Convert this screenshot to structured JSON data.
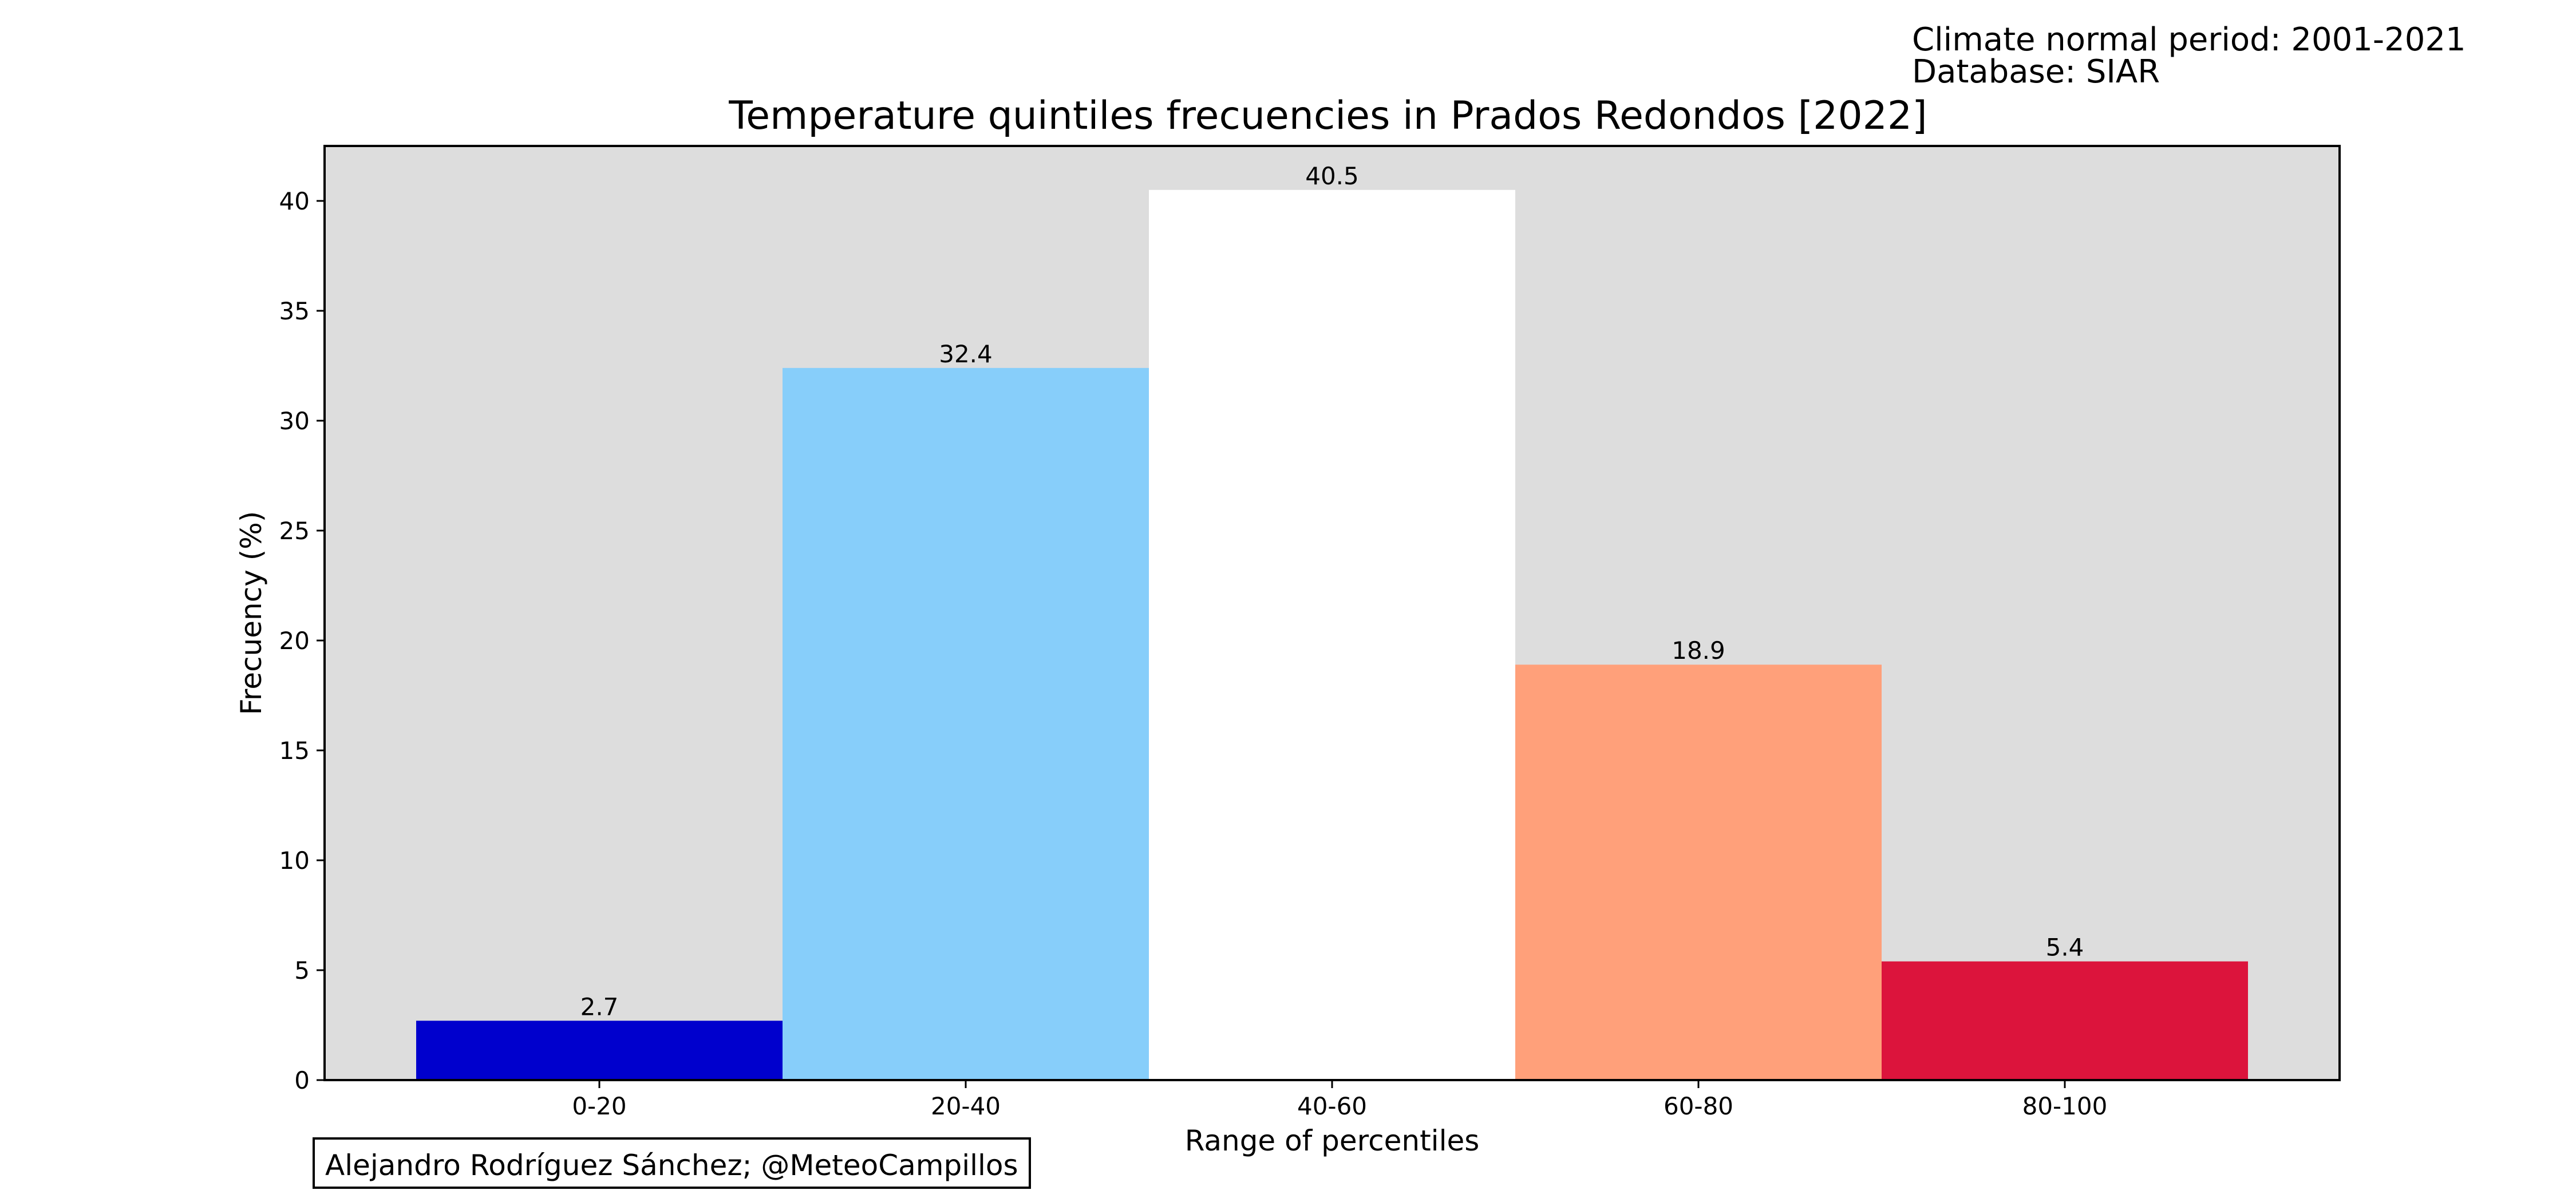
{
  "meta": {
    "period": "Climate normal period: 2001-2021",
    "database": "Database: SIAR"
  },
  "credit": "Alejandro Rodríguez Sánchez; @MeteoCampillos",
  "chart_data": {
    "type": "bar",
    "title": "Temperature quintiles frecuencies in Prados Redondos [2022]",
    "xlabel": "Range of percentiles",
    "ylabel": "Frecuency (%)",
    "categories": [
      "0-20",
      "20-40",
      "40-60",
      "60-80",
      "80-100"
    ],
    "values": [
      2.7,
      32.4,
      40.5,
      18.9,
      5.4
    ],
    "value_labels": [
      "2.7",
      "32.4",
      "40.5",
      "18.9",
      "5.4"
    ],
    "colors": [
      "#0000CD",
      "#87CEFA",
      "#FFFFFF",
      "#FFA07A",
      "#DC143C"
    ],
    "ylim": [
      0,
      42.5
    ],
    "yticks": [
      0,
      5,
      10,
      15,
      20,
      25,
      30,
      35,
      40
    ],
    "plot_background": "#DDDDDD",
    "grid": false
  }
}
